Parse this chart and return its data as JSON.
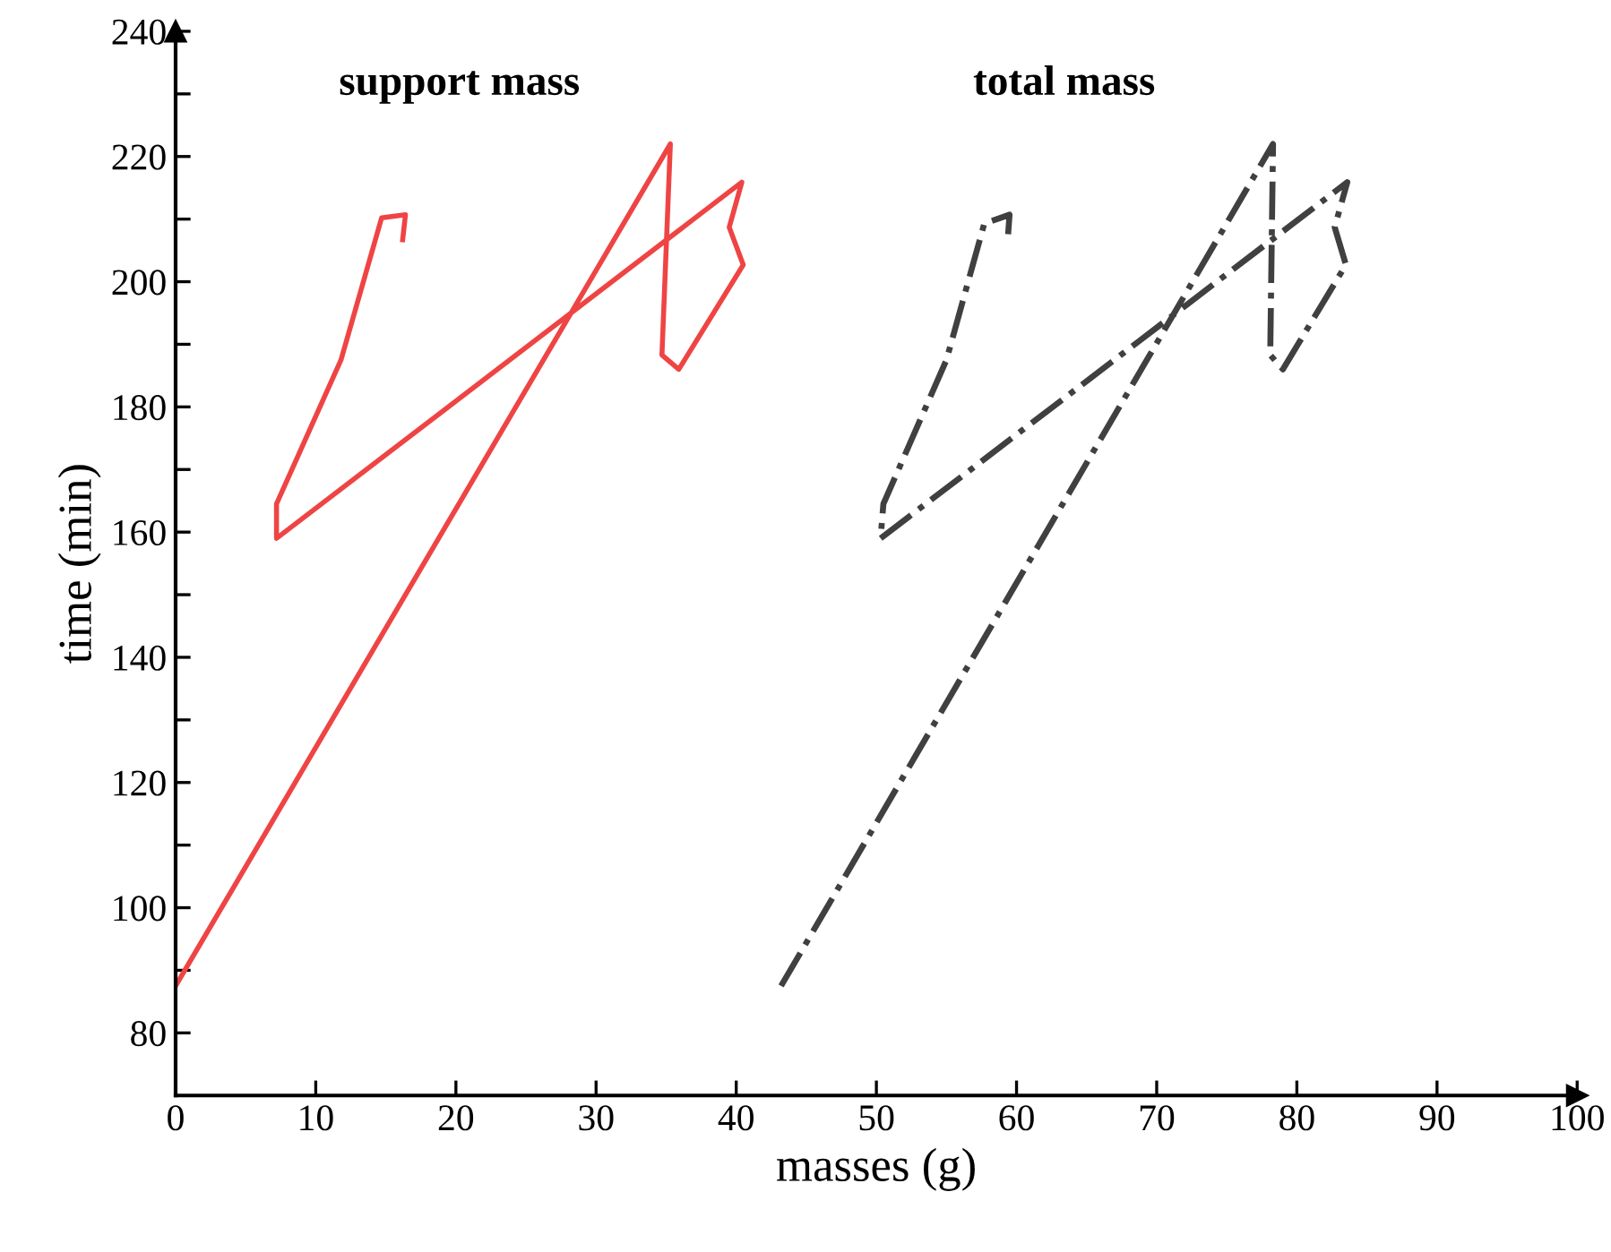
{
  "chart_data": {
    "type": "line",
    "xlabel": "masses (g)",
    "ylabel": "time (min)",
    "xlim": [
      0,
      100
    ],
    "ylim": [
      70,
      240
    ],
    "xticks": [
      0,
      10,
      20,
      30,
      40,
      50,
      60,
      70,
      80,
      90,
      100
    ],
    "yticks": [
      80,
      {
        "value": 90,
        "label": null
      },
      100,
      {
        "value": 110,
        "label": null
      },
      120,
      {
        "value": 130,
        "label": null
      },
      140,
      {
        "value": 150,
        "label": null
      },
      160,
      {
        "value": 170,
        "label": null
      },
      180,
      {
        "value": 190,
        "label": null
      },
      200,
      {
        "value": 210,
        "label": null
      },
      220,
      {
        "value": 230,
        "label": null
      },
      240
    ],
    "grid": false,
    "legend": false,
    "marker": "none",
    "series": [
      {
        "name": "support mass",
        "color": "#ef4444",
        "line_style": "solid",
        "x": [
          0,
          35.3,
          34.7,
          35.9,
          40.5,
          39.5,
          40.4,
          7.2,
          7.2,
          11.8,
          14.7,
          16.4,
          16.2
        ],
        "values": [
          87.5,
          222,
          188.3,
          186,
          202.7,
          208.7,
          215.9,
          159,
          164.5,
          187.5,
          210.2,
          210.7,
          206.7
        ]
      },
      {
        "name": "total mass",
        "color": "#404040",
        "line_style": "dashdot",
        "x": [
          43.2,
          78.3,
          78.1,
          79.0,
          83.5,
          82.7,
          83.6,
          50.3,
          50.5,
          55.0,
          57.7,
          59.5,
          59.4
        ],
        "values": [
          87.5,
          222,
          188.3,
          186,
          202.7,
          208.7,
          215.9,
          159,
          164.5,
          187.5,
          209.3,
          210.7,
          207.6
        ]
      }
    ]
  }
}
